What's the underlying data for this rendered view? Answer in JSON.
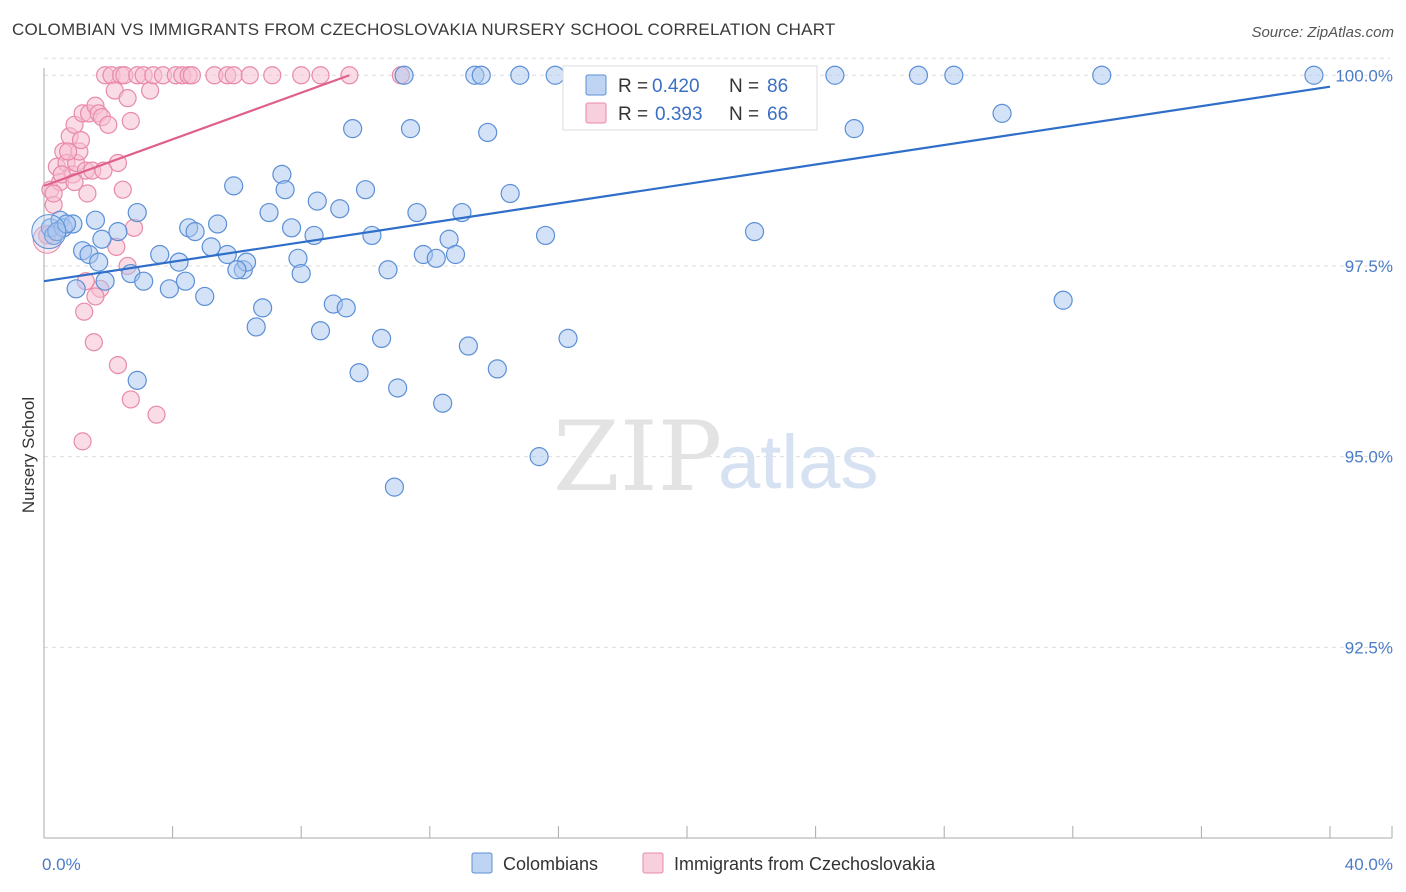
{
  "header": {
    "title": "COLOMBIAN VS IMMIGRANTS FROM CZECHOSLOVAKIA NURSERY SCHOOL CORRELATION CHART",
    "source": "Source: ZipAtlas.com"
  },
  "watermark": {
    "part1": "ZIP",
    "part2": "atlas"
  },
  "colors": {
    "blue_fill": "#a9c6ef",
    "blue_stroke": "#5b8fd6",
    "blue_line": "#2f6fc9",
    "pink_fill": "#f6bfd1",
    "pink_stroke": "#e88aa8",
    "pink_line": "#e0608c",
    "grid": "#dddddd",
    "axis_text": "#4a7cc7"
  },
  "legend": {
    "r_label": "R =",
    "n_label": "N =",
    "items": [
      {
        "r": "0.420",
        "n": "86"
      },
      {
        "r": "0.393",
        "n": "66"
      }
    ]
  },
  "bottom_legend": [
    "Colombians",
    "Immigrants from Czechoslovakia"
  ],
  "chart_data": {
    "type": "scatter",
    "xlabel": "",
    "ylabel": "Nursery School",
    "xlim": [
      0,
      40
    ],
    "ylim": [
      90.0,
      100.2
    ],
    "x_tick_labels": [
      {
        "value": 0,
        "label": "0.0%"
      },
      {
        "value": 40,
        "label": "40.0%"
      }
    ],
    "y_tick_labels": [
      {
        "value": 100.0,
        "label": "100.0%"
      },
      {
        "value": 97.5,
        "label": "97.5%"
      },
      {
        "value": 95.0,
        "label": "95.0%"
      },
      {
        "value": 92.5,
        "label": "92.5%"
      }
    ],
    "series": [
      {
        "name": "Colombians",
        "trend": {
          "x": [
            0,
            40
          ],
          "y": [
            97.3,
            99.85
          ]
        },
        "points": [
          [
            0.2,
            98.0
          ],
          [
            0.3,
            97.9
          ],
          [
            0.5,
            98.1
          ],
          [
            0.6,
            98.0
          ],
          [
            0.9,
            98.05
          ],
          [
            1.0,
            97.2
          ],
          [
            1.2,
            97.7
          ],
          [
            1.4,
            97.65
          ],
          [
            1.6,
            98.1
          ],
          [
            1.7,
            97.55
          ],
          [
            1.8,
            97.85
          ],
          [
            1.9,
            97.3
          ],
          [
            2.3,
            97.95
          ],
          [
            2.7,
            97.4
          ],
          [
            2.9,
            98.2
          ],
          [
            3.1,
            97.3
          ],
          [
            3.6,
            97.65
          ],
          [
            3.9,
            97.2
          ],
          [
            4.2,
            97.55
          ],
          [
            4.4,
            97.3
          ],
          [
            4.5,
            98.0
          ],
          [
            4.7,
            97.95
          ],
          [
            5.0,
            97.1
          ],
          [
            5.2,
            97.75
          ],
          [
            5.4,
            98.05
          ],
          [
            5.7,
            97.65
          ],
          [
            5.9,
            98.55
          ],
          [
            6.2,
            97.45
          ],
          [
            6.3,
            97.55
          ],
          [
            6.6,
            96.7
          ],
          [
            6.8,
            96.95
          ],
          [
            7.0,
            98.2
          ],
          [
            7.4,
            98.7
          ],
          [
            7.5,
            98.5
          ],
          [
            7.7,
            98.0
          ],
          [
            7.9,
            97.6
          ],
          [
            8.0,
            97.4
          ],
          [
            8.4,
            97.9
          ],
          [
            8.5,
            98.35
          ],
          [
            8.6,
            96.65
          ],
          [
            9.0,
            97.0
          ],
          [
            9.2,
            98.25
          ],
          [
            9.4,
            96.95
          ],
          [
            9.6,
            99.3
          ],
          [
            9.8,
            96.1
          ],
          [
            10.0,
            98.5
          ],
          [
            10.2,
            97.9
          ],
          [
            10.5,
            96.55
          ],
          [
            10.7,
            97.45
          ],
          [
            11.0,
            95.9
          ],
          [
            11.2,
            100.0
          ],
          [
            11.4,
            99.3
          ],
          [
            11.6,
            98.2
          ],
          [
            11.8,
            97.65
          ],
          [
            12.2,
            97.6
          ],
          [
            12.4,
            95.7
          ],
          [
            12.6,
            97.85
          ],
          [
            12.8,
            97.65
          ],
          [
            13.0,
            98.2
          ],
          [
            13.2,
            96.45
          ],
          [
            13.4,
            100.0
          ],
          [
            13.8,
            99.25
          ],
          [
            14.1,
            96.15
          ],
          [
            14.5,
            98.45
          ],
          [
            14.8,
            100.0
          ],
          [
            15.4,
            95.0
          ],
          [
            15.6,
            97.9
          ],
          [
            15.9,
            100.0
          ],
          [
            16.3,
            96.55
          ],
          [
            17.8,
            100.0
          ],
          [
            18.7,
            100.0
          ],
          [
            22.1,
            97.95
          ],
          [
            24.6,
            100.0
          ],
          [
            25.2,
            99.3
          ],
          [
            27.2,
            100.0
          ],
          [
            28.3,
            100.0
          ],
          [
            29.8,
            99.5
          ],
          [
            31.7,
            97.05
          ],
          [
            32.9,
            100.0
          ],
          [
            39.5,
            100.0
          ],
          [
            10.9,
            94.6
          ],
          [
            2.9,
            96.0
          ],
          [
            6.0,
            97.45
          ],
          [
            13.6,
            100.0
          ],
          [
            0.4,
            97.95
          ],
          [
            0.7,
            98.05
          ]
        ]
      },
      {
        "name": "Immigrants from Czechoslovakia",
        "trend": {
          "x": [
            0,
            9.5
          ],
          "y": [
            98.55,
            100.0
          ]
        },
        "points": [
          [
            0.1,
            97.9
          ],
          [
            0.2,
            98.5
          ],
          [
            0.3,
            98.3
          ],
          [
            0.4,
            98.8
          ],
          [
            0.5,
            98.6
          ],
          [
            0.6,
            99.0
          ],
          [
            0.7,
            98.85
          ],
          [
            0.8,
            99.2
          ],
          [
            0.9,
            98.7
          ],
          [
            0.95,
            99.35
          ],
          [
            1.0,
            98.85
          ],
          [
            1.1,
            99.0
          ],
          [
            1.15,
            99.15
          ],
          [
            1.2,
            99.5
          ],
          [
            1.3,
            98.75
          ],
          [
            1.35,
            98.45
          ],
          [
            1.4,
            99.5
          ],
          [
            1.5,
            98.75
          ],
          [
            1.6,
            99.6
          ],
          [
            1.7,
            99.5
          ],
          [
            1.75,
            97.2
          ],
          [
            1.8,
            99.45
          ],
          [
            1.9,
            100.0
          ],
          [
            2.0,
            99.35
          ],
          [
            2.1,
            100.0
          ],
          [
            2.2,
            99.8
          ],
          [
            2.3,
            98.85
          ],
          [
            2.4,
            100.0
          ],
          [
            2.5,
            100.0
          ],
          [
            2.6,
            99.7
          ],
          [
            2.7,
            99.4
          ],
          [
            2.8,
            98.0
          ],
          [
            2.9,
            100.0
          ],
          [
            3.1,
            100.0
          ],
          [
            3.3,
            99.8
          ],
          [
            3.4,
            100.0
          ],
          [
            3.7,
            100.0
          ],
          [
            4.1,
            100.0
          ],
          [
            4.3,
            100.0
          ],
          [
            4.5,
            100.0
          ],
          [
            4.6,
            100.0
          ],
          [
            5.3,
            100.0
          ],
          [
            5.7,
            100.0
          ],
          [
            5.9,
            100.0
          ],
          [
            6.4,
            100.0
          ],
          [
            7.1,
            100.0
          ],
          [
            8.0,
            100.0
          ],
          [
            8.6,
            100.0
          ],
          [
            9.5,
            100.0
          ],
          [
            11.1,
            100.0
          ],
          [
            1.3,
            97.3
          ],
          [
            1.25,
            96.9
          ],
          [
            1.55,
            96.5
          ],
          [
            2.3,
            96.2
          ],
          [
            2.7,
            95.75
          ],
          [
            3.5,
            95.55
          ],
          [
            1.2,
            95.2
          ],
          [
            2.6,
            97.5
          ],
          [
            2.25,
            97.75
          ],
          [
            0.55,
            98.7
          ],
          [
            0.95,
            98.6
          ],
          [
            1.85,
            98.75
          ],
          [
            2.45,
            98.5
          ],
          [
            1.6,
            97.1
          ],
          [
            0.3,
            98.45
          ],
          [
            0.75,
            99.0
          ]
        ]
      }
    ]
  }
}
